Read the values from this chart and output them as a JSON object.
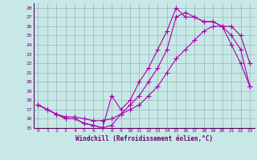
{
  "title": "Windchill (Refroidissement éolien,°C)",
  "bg_color": "#c8e8e8",
  "line_color": "#aa00aa",
  "grid_color": "#9dbfbf",
  "xlim": [
    -0.5,
    23.5
  ],
  "ylim": [
    15,
    28.5
  ],
  "xticks": [
    0,
    1,
    2,
    3,
    4,
    5,
    6,
    7,
    8,
    9,
    10,
    11,
    12,
    13,
    14,
    15,
    16,
    17,
    18,
    19,
    20,
    21,
    22,
    23
  ],
  "yticks": [
    15,
    16,
    17,
    18,
    19,
    20,
    21,
    22,
    23,
    24,
    25,
    26,
    27,
    28
  ],
  "line1_x": [
    0,
    1,
    2,
    3,
    4,
    5,
    6,
    7,
    8,
    9,
    10,
    11,
    12,
    13,
    14,
    15,
    16,
    17,
    18,
    19,
    20,
    21,
    22,
    23
  ],
  "line1_y": [
    17.5,
    17.0,
    16.5,
    16.0,
    16.0,
    15.5,
    15.3,
    15.0,
    15.3,
    16.5,
    17.0,
    17.5,
    18.5,
    19.5,
    21.0,
    22.5,
    23.5,
    24.5,
    25.5,
    26.0,
    26.0,
    25.0,
    23.5,
    19.5
  ],
  "line2_x": [
    0,
    1,
    2,
    3,
    4,
    5,
    6,
    7,
    8,
    9,
    10,
    11,
    12,
    13,
    14,
    15,
    16,
    17,
    18,
    19,
    20,
    21,
    22,
    23
  ],
  "line2_y": [
    17.5,
    17.0,
    16.5,
    16.2,
    16.2,
    16.0,
    15.8,
    15.8,
    16.0,
    16.5,
    17.5,
    18.5,
    20.0,
    21.5,
    23.5,
    27.0,
    27.5,
    27.0,
    26.5,
    26.5,
    26.0,
    26.0,
    25.0,
    22.0
  ],
  "line3_x": [
    0,
    1,
    2,
    3,
    4,
    5,
    6,
    7,
    8,
    9,
    10,
    11,
    12,
    13,
    14,
    15,
    16,
    17,
    18,
    19,
    20,
    21,
    22,
    23
  ],
  "line3_y": [
    17.5,
    17.0,
    16.5,
    16.0,
    16.0,
    15.5,
    15.3,
    15.0,
    18.5,
    17.0,
    18.0,
    20.0,
    21.5,
    23.5,
    25.5,
    28.0,
    27.0,
    27.0,
    26.5,
    26.5,
    26.0,
    24.0,
    22.0,
    19.5
  ]
}
